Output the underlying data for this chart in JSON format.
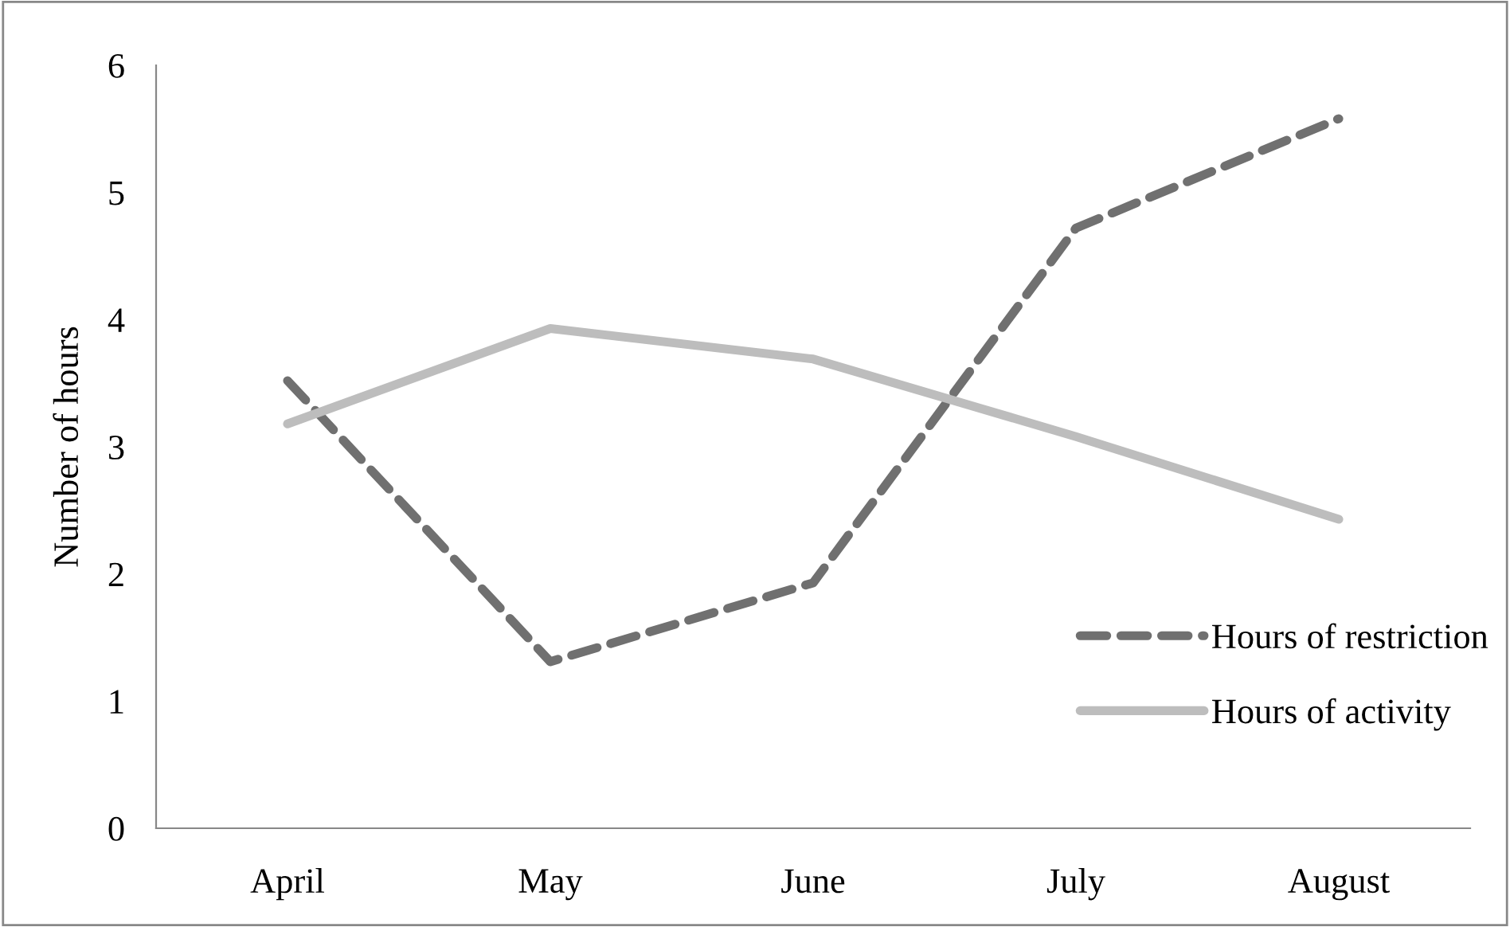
{
  "chart_data": {
    "type": "line",
    "ylabel": "Number of hours",
    "categories": [
      "April",
      "May",
      "June",
      "July",
      "August"
    ],
    "series": [
      {
        "name": "Hours of restriction",
        "color": "#707070",
        "line_style": "dashed",
        "values": [
          3.52,
          1.31,
          1.93,
          4.72,
          5.58
        ]
      },
      {
        "name": "Hours of activity",
        "color": "#bdbdbd",
        "line_style": "solid",
        "values": [
          3.18,
          3.93,
          3.69,
          3.08,
          2.43
        ]
      }
    ],
    "ylim": [
      0,
      6
    ],
    "yticks": [
      0,
      1,
      2,
      3,
      4,
      5,
      6
    ],
    "grid": false,
    "legend": "bottom right",
    "marker": "none"
  }
}
